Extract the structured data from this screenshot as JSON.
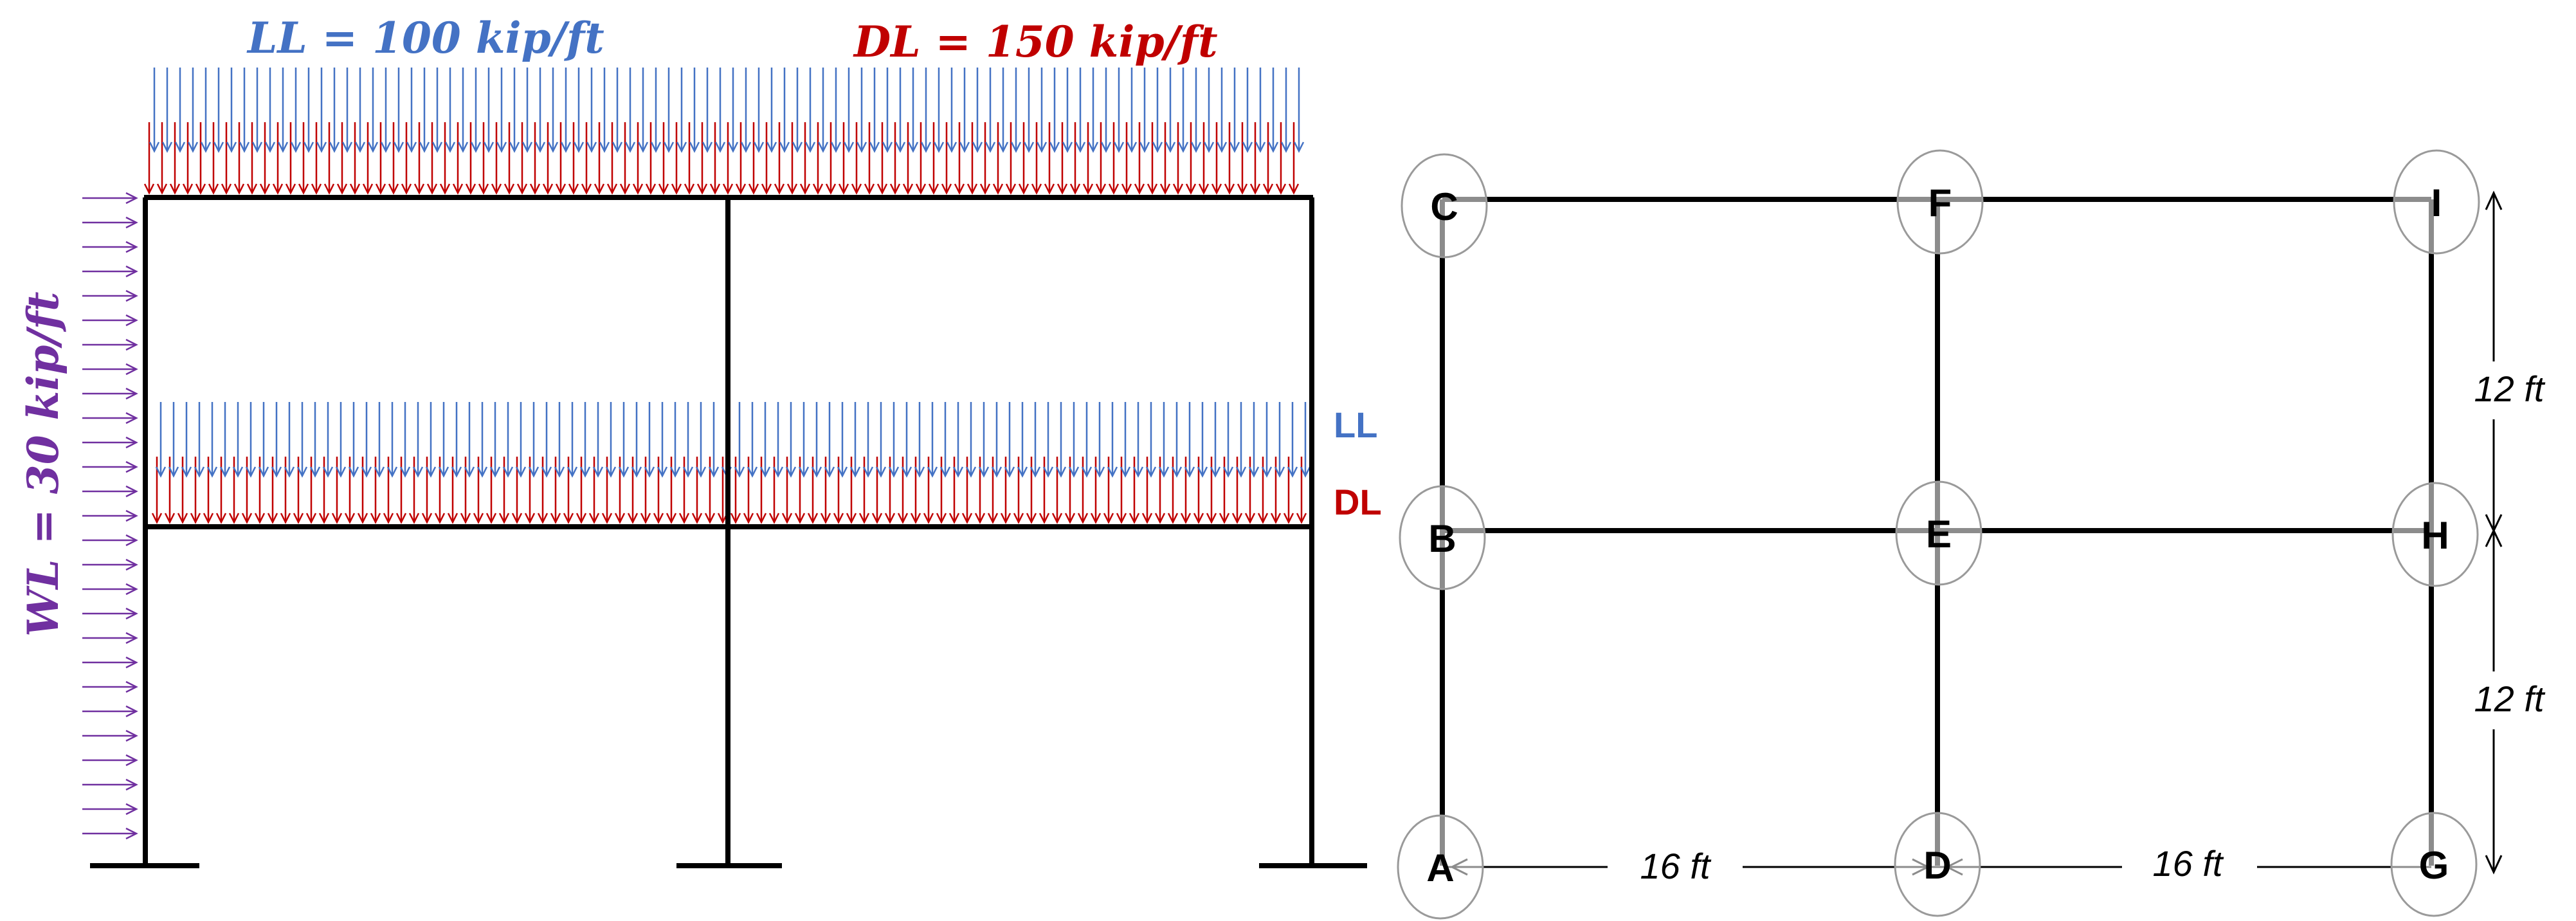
{
  "colors": {
    "live_load": "#4472C4",
    "dead_load": "#C00000",
    "wind_load": "#7030A0",
    "frame": "#000000",
    "node_outline": "#9a9a9a"
  },
  "left_frame": {
    "live_load_label": "LL = 100 kip/ft",
    "dead_load_label": "DL = 150 kip/ft",
    "wind_load_label": "WL = 30 kip/ft",
    "legend_ll": "LL",
    "legend_dl": "DL"
  },
  "right_frame": {
    "nodes": [
      "A",
      "B",
      "C",
      "D",
      "E",
      "F",
      "G",
      "H",
      "I"
    ],
    "dimensions": {
      "bay_1": "16 ft",
      "bay_2": "16 ft",
      "story_1": "12 ft",
      "story_2": "12 ft"
    }
  }
}
